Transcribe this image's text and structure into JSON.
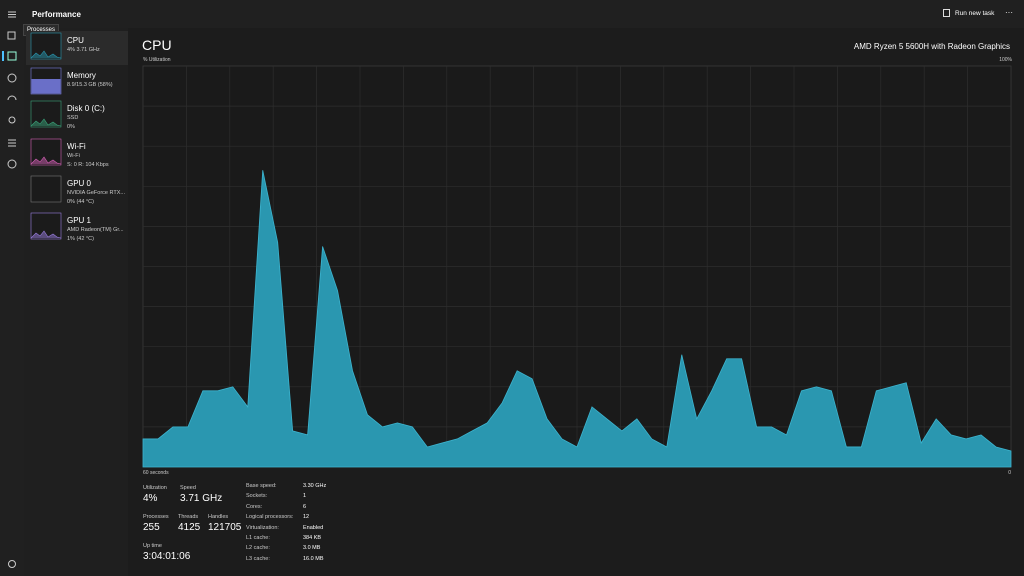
{
  "title_bar": {
    "title": "Performance",
    "run_new_task": "Run new task",
    "more": "···"
  },
  "tooltip": "Processes",
  "sidebar": [
    {
      "name": "CPU",
      "lines": [
        "4% 3.71 GHz"
      ]
    },
    {
      "name": "Memory",
      "lines": [
        "8.9/15.3 GB (58%)"
      ]
    },
    {
      "name": "Disk 0 (C:)",
      "lines": [
        "SSD",
        "0%"
      ]
    },
    {
      "name": "Wi-Fi",
      "lines": [
        "Wi-Fi",
        "S: 0 R: 104 Kbps"
      ]
    },
    {
      "name": "GPU 0",
      "lines": [
        "NVIDIA GeForce RTX...",
        "0% (44 °C)"
      ]
    },
    {
      "name": "GPU 1",
      "lines": [
        "AMD Radeon(TM) Gr...",
        "1% (42 °C)"
      ]
    }
  ],
  "main": {
    "title": "CPU",
    "processor": "AMD Ryzen 5 5600H with Radeon Graphics",
    "y_label": "% Utilization",
    "y_max_label": "100%",
    "x_left_label": "60 seconds",
    "x_right_label": "0"
  },
  "graph": {
    "values": [
      7,
      7,
      10,
      10,
      19,
      19,
      20,
      15,
      74,
      56,
      9,
      8,
      55,
      44,
      24,
      13,
      10,
      11,
      10,
      5,
      6,
      7,
      9,
      11,
      16,
      24,
      22,
      12,
      7,
      5,
      15,
      12,
      9,
      12,
      7,
      5,
      28,
      12,
      19,
      27,
      27,
      10,
      10,
      8,
      19,
      20,
      19,
      5,
      5,
      19,
      20,
      21,
      6,
      12,
      8,
      7,
      8,
      5,
      4
    ],
    "ylim": [
      0,
      100
    ],
    "color": "#2a97b0"
  },
  "stats": [
    {
      "label": "Utilization",
      "value": "4%"
    },
    {
      "label": "Speed",
      "value": "3.71 GHz"
    },
    {
      "label": "Processes",
      "value": "255"
    },
    {
      "label": "Threads",
      "value": "4125"
    },
    {
      "label": "Handles",
      "value": "121705"
    },
    {
      "label": "Up time",
      "value": "3:04:01:06"
    }
  ],
  "details": [
    {
      "label": "Base speed:",
      "value": "3.30 GHz"
    },
    {
      "label": "Sockets:",
      "value": "1"
    },
    {
      "label": "Cores:",
      "value": "6"
    },
    {
      "label": "Logical processors:",
      "value": "12"
    },
    {
      "label": "Virtualization:",
      "value": "Enabled"
    },
    {
      "label": "L1 cache:",
      "value": "384 KB"
    },
    {
      "label": "L2 cache:",
      "value": "3.0 MB"
    },
    {
      "label": "L3 cache:",
      "value": "16.0 MB"
    }
  ]
}
